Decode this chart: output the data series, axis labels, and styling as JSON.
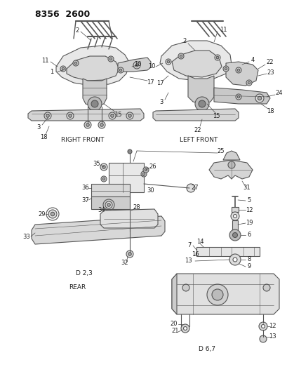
{
  "title": "8356 2600",
  "background_color": "#ffffff",
  "figsize": [
    4.1,
    5.33
  ],
  "dpi": 100,
  "text_color": "#222222",
  "line_color": "#555555",
  "labels": {
    "right_front": "RIGHT FRONT",
    "left_front": "LEFT FRONT",
    "rear": "REAR",
    "d23": "D 2,3",
    "d67": "D 6,7"
  }
}
